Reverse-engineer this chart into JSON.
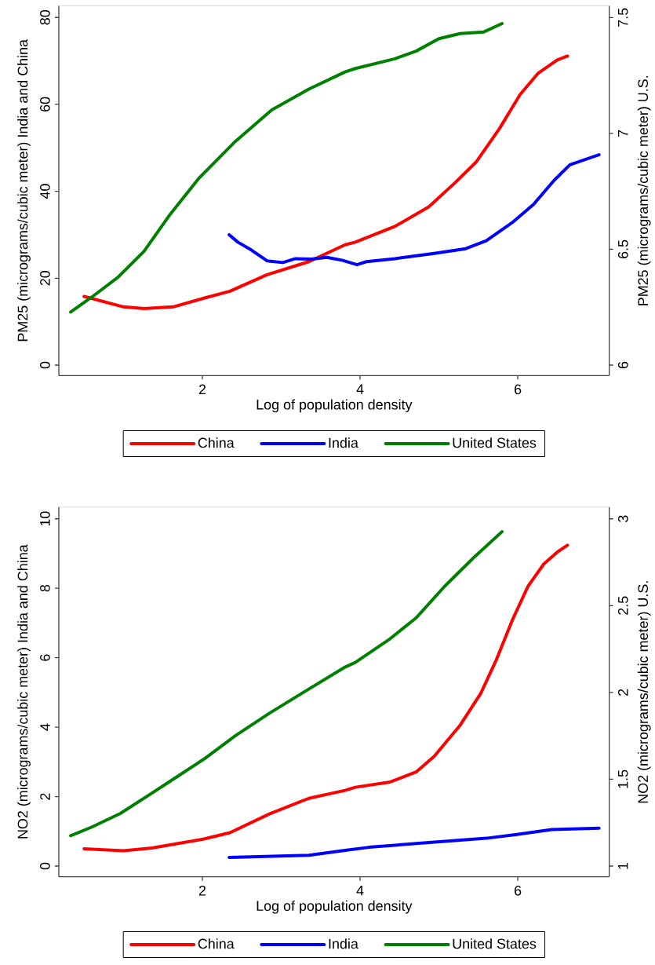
{
  "chart_data": [
    {
      "type": "line",
      "xlabel": "Log of population density",
      "ylabel": "PM25 (micrograms/cubic meter) India and China",
      "y2label": "PM25 (micrograms/cubic meter) U.S.",
      "xlim": [
        0.18,
        7.16
      ],
      "xticks": [
        2,
        4,
        6
      ],
      "ylim": [
        -2.4,
        82.7
      ],
      "yticks": [
        0,
        20,
        40,
        60,
        80
      ],
      "y2lim": [
        5.955,
        7.551
      ],
      "y2ticks": [
        6,
        6.5,
        7,
        7.5
      ],
      "legend": "bottom",
      "series": [
        {
          "name": "China",
          "color": "#ff0000",
          "x": [
            0.5,
            1.0,
            1.26,
            1.63,
            2.02,
            2.35,
            2.82,
            3.35,
            3.81,
            3.94,
            4.44,
            4.87,
            5.2,
            5.47,
            5.77,
            6.03,
            6.26,
            6.5,
            6.63
          ],
          "values": [
            15.8,
            13.4,
            13.0,
            13.4,
            15.4,
            17.0,
            20.8,
            23.8,
            27.7,
            28.3,
            31.9,
            36.4,
            41.9,
            46.7,
            54.5,
            62.3,
            67.2,
            70.2,
            71.1
          ]
        },
        {
          "name": "India",
          "color": "#0000ff",
          "x": [
            2.34,
            2.45,
            2.62,
            2.82,
            3.02,
            3.18,
            3.38,
            3.58,
            3.78,
            3.96,
            4.08,
            4.44,
            4.94,
            5.34,
            5.6,
            5.93,
            6.2,
            6.46,
            6.66,
            7.03
          ],
          "values": [
            30.0,
            28.3,
            26.5,
            24.0,
            23.6,
            24.5,
            24.4,
            24.8,
            24.1,
            23.1,
            23.8,
            24.5,
            25.7,
            26.8,
            28.6,
            32.8,
            37.0,
            42.5,
            46.1,
            48.4
          ]
        },
        {
          "name": "United States",
          "color": "#008000",
          "axis": "y2",
          "x": [
            0.33,
            0.6,
            0.93,
            1.26,
            1.59,
            1.96,
            2.42,
            2.88,
            3.35,
            3.81,
            3.94,
            4.44,
            4.71,
            5.0,
            5.27,
            5.57,
            5.8
          ],
          "values": [
            6.229,
            6.294,
            6.379,
            6.491,
            6.65,
            6.808,
            6.966,
            7.101,
            7.191,
            7.265,
            7.28,
            7.322,
            7.355,
            7.409,
            7.431,
            7.438,
            7.474
          ]
        }
      ]
    },
    {
      "type": "line",
      "xlabel": "Log of population density",
      "ylabel": "NO2 (micrograms/cubic meter) India and China",
      "y2label": "NO2 (micrograms/cubic meter) U.S.",
      "xlim": [
        0.18,
        7.16
      ],
      "xticks": [
        2,
        4,
        6
      ],
      "ylim": [
        -0.31,
        10.34
      ],
      "yticks": [
        0,
        2,
        4,
        6,
        8,
        10
      ],
      "y2lim": [
        0.938,
        3.068
      ],
      "y2ticks": [
        1,
        1.5,
        2,
        2.5,
        3
      ],
      "legend": "bottom",
      "series": [
        {
          "name": "China",
          "color": "#ff0000",
          "x": [
            0.5,
            1.0,
            1.36,
            2.02,
            2.35,
            2.85,
            3.35,
            3.81,
            3.94,
            4.38,
            4.71,
            4.94,
            5.27,
            5.53,
            5.73,
            5.93,
            6.13,
            6.33,
            6.5,
            6.63
          ],
          "values": [
            0.5,
            0.44,
            0.52,
            0.78,
            0.96,
            1.5,
            1.95,
            2.18,
            2.27,
            2.42,
            2.71,
            3.16,
            4.06,
            4.97,
            5.95,
            7.08,
            8.06,
            8.7,
            9.04,
            9.24
          ]
        },
        {
          "name": "India",
          "color": "#0000ff",
          "x": [
            2.34,
            3.35,
            3.81,
            4.11,
            4.94,
            5.6,
            5.99,
            6.43,
            7.03
          ],
          "values": [
            0.25,
            0.31,
            0.45,
            0.54,
            0.69,
            0.8,
            0.91,
            1.05,
            1.09
          ]
        },
        {
          "name": "United States",
          "color": "#008000",
          "axis": "y2",
          "x": [
            0.33,
            0.6,
            0.96,
            1.36,
            1.69,
            2.02,
            2.42,
            2.85,
            3.28,
            3.81,
            3.94,
            4.38,
            4.71,
            5.07,
            5.44,
            5.8
          ],
          "values": [
            1.175,
            1.225,
            1.303,
            1.42,
            1.518,
            1.616,
            1.751,
            1.88,
            2.0,
            2.146,
            2.173,
            2.309,
            2.429,
            2.61,
            2.776,
            2.926
          ]
        }
      ]
    }
  ]
}
